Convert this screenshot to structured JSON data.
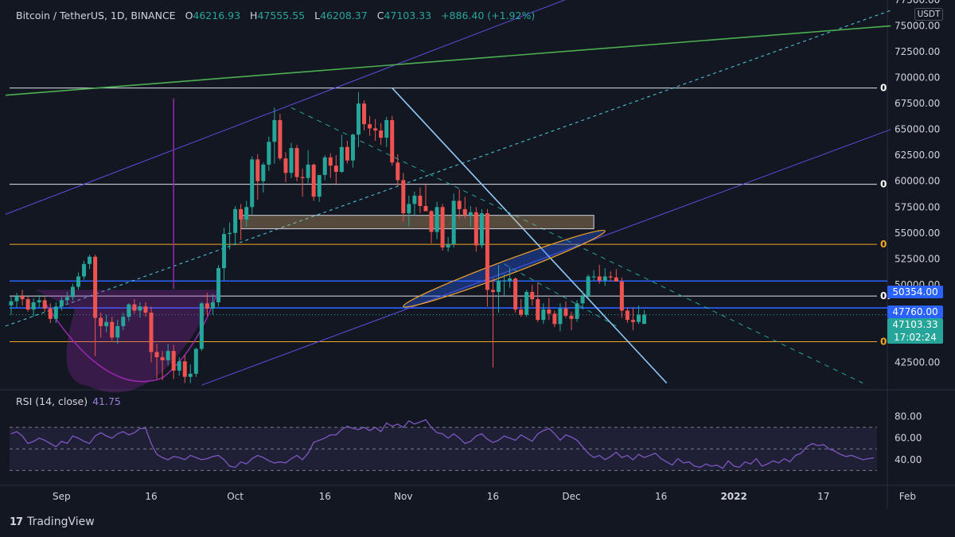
{
  "header": {
    "symbol": "Bitcoin / TetherUS, 1D, BINANCE",
    "o_label": "O",
    "o_value": "46216.93",
    "h_label": "H",
    "h_value": "47555.55",
    "l_label": "L",
    "l_value": "46208.37",
    "c_label": "C",
    "c_value": "47103.33",
    "change": "+886.40 (+1.92%)"
  },
  "currency_badge": "USDT",
  "price_tags": {
    "level1": "50354.00",
    "level2": "47760.00",
    "last_price": "47103.33",
    "countdown": "17:02:24"
  },
  "fib_labels": [
    "0",
    "0",
    "0",
    "0.",
    "0"
  ],
  "rsi": {
    "label": "RSI (14, close)",
    "value": "41.75"
  },
  "branding": "TradingView",
  "colors": {
    "up": "#26a69a",
    "down": "#ef5350",
    "rsi_line": "#7e57c2",
    "blue_level": "#2962ff",
    "green_trend": "#4caf50",
    "channel": "#5b4ee0",
    "orange_level": "#f5a623",
    "cup": "#9c27b0"
  },
  "chart_data": {
    "type": "candlestick",
    "symbol": "Bitcoin / TetherUS",
    "interval": "1D",
    "y_ticks": [
      "42500.00",
      "45000.00",
      "47500.00",
      "50000.00",
      "52500.00",
      "55000.00",
      "57500.00",
      "60000.00",
      "62500.00",
      "65000.00",
      "67500.00",
      "70000.00",
      "72500.00",
      "75000.00",
      "77500.00"
    ],
    "rsi_ticks": [
      "40.00",
      "60.00",
      "80.00"
    ],
    "x_ticks": [
      "Sep",
      "16",
      "Oct",
      "16",
      "Nov",
      "16",
      "Dec",
      "16",
      "2022",
      "17",
      "Feb"
    ],
    "ylim": [
      40000,
      77500
    ],
    "horizontal_levels": {
      "white": [
        69000,
        59700,
        48900
      ],
      "orange": [
        53900,
        44500
      ],
      "blue": [
        50354,
        47760
      ]
    },
    "rsi_bands": [
      70,
      50,
      30
    ],
    "rsi_values": [
      64,
      66,
      62,
      55,
      57,
      60,
      58,
      55,
      52,
      57,
      55,
      62,
      60,
      57,
      55,
      62,
      65,
      62,
      60,
      64,
      66,
      63,
      65,
      69,
      69,
      55,
      45,
      42,
      40,
      43,
      42,
      40,
      44,
      42,
      40,
      41,
      43,
      44,
      40,
      34,
      33,
      38,
      36,
      41,
      44,
      42,
      39,
      37,
      38,
      37,
      41,
      44,
      40,
      46,
      56,
      58,
      60,
      63,
      63,
      68,
      71,
      69,
      68,
      70,
      67,
      70,
      66,
      74,
      71,
      73,
      70,
      76,
      73,
      75,
      77,
      70,
      65,
      64,
      60,
      64,
      60,
      55,
      57,
      62,
      64,
      59,
      56,
      58,
      62,
      60,
      58,
      63,
      60,
      57,
      64,
      67,
      69,
      64,
      58,
      63,
      61,
      58,
      52,
      46,
      42,
      44,
      40,
      43,
      47,
      42,
      44,
      40,
      45,
      42,
      44,
      46,
      41,
      38,
      35,
      41,
      37,
      38,
      34,
      33,
      36,
      34,
      35,
      32,
      39,
      34,
      33,
      38,
      36,
      41,
      34,
      36,
      39,
      37,
      41,
      38,
      44,
      46,
      52,
      55,
      53,
      54,
      50,
      48,
      45,
      43,
      44,
      42,
      40,
      41,
      41.75
    ],
    "candles": [
      [
        48000,
        48900,
        47100,
        48400
      ],
      [
        48400,
        49200,
        47800,
        48900
      ],
      [
        48900,
        49500,
        48000,
        48600
      ],
      [
        48600,
        48900,
        47400,
        47600
      ],
      [
        47600,
        48700,
        46900,
        48300
      ],
      [
        48300,
        49000,
        47800,
        48500
      ],
      [
        48500,
        48800,
        47400,
        47700
      ],
      [
        47700,
        48200,
        46300,
        46700
      ],
      [
        46700,
        48300,
        46300,
        47900
      ],
      [
        47900,
        48800,
        47500,
        48500
      ],
      [
        48500,
        49300,
        48100,
        48800
      ],
      [
        48800,
        50100,
        48500,
        49800
      ],
      [
        49800,
        51200,
        49500,
        50800
      ],
      [
        50800,
        52300,
        50500,
        52000
      ],
      [
        52000,
        52900,
        51500,
        52700
      ],
      [
        52700,
        52900,
        43100,
        46800
      ],
      [
        46800,
        47300,
        44900,
        46000
      ],
      [
        46000,
        47100,
        45400,
        46400
      ],
      [
        46400,
        46900,
        44600,
        44900
      ],
      [
        44900,
        46600,
        44300,
        46000
      ],
      [
        46000,
        47300,
        45600,
        46900
      ],
      [
        46900,
        48200,
        46500,
        48100
      ],
      [
        48100,
        48600,
        47200,
        47500
      ],
      [
        47500,
        48300,
        46800,
        47900
      ],
      [
        47900,
        48300,
        46900,
        47300
      ],
      [
        47300,
        47900,
        42500,
        43500
      ],
      [
        43500,
        44300,
        40900,
        43000
      ],
      [
        43000,
        43600,
        40800,
        42700
      ],
      [
        42700,
        44300,
        42200,
        43600
      ],
      [
        43600,
        44200,
        40900,
        41700
      ],
      [
        41700,
        43000,
        41200,
        42600
      ],
      [
        42600,
        43200,
        40500,
        41100
      ],
      [
        41100,
        42300,
        40500,
        41400
      ],
      [
        41400,
        43900,
        41100,
        43800
      ],
      [
        43800,
        48300,
        43600,
        48200
      ],
      [
        48200,
        49200,
        47000,
        47700
      ],
      [
        47700,
        49100,
        47100,
        48300
      ],
      [
        48300,
        51900,
        47900,
        51600
      ],
      [
        51600,
        55500,
        50400,
        54900
      ],
      [
        54900,
        56000,
        53400,
        55000
      ],
      [
        55000,
        57600,
        53900,
        57300
      ],
      [
        57300,
        57800,
        54300,
        56300
      ],
      [
        56300,
        58100,
        55600,
        57500
      ],
      [
        57500,
        62400,
        56800,
        62100
      ],
      [
        62100,
        62600,
        58200,
        60000
      ],
      [
        60000,
        61800,
        58900,
        61600
      ],
      [
        61600,
        64300,
        61000,
        63800
      ],
      [
        63800,
        67100,
        61700,
        65900
      ],
      [
        65900,
        66500,
        62000,
        62200
      ],
      [
        62200,
        62800,
        59900,
        60800
      ],
      [
        60800,
        63700,
        60300,
        63200
      ],
      [
        63200,
        63500,
        60000,
        60400
      ],
      [
        60400,
        61200,
        58500,
        60300
      ],
      [
        60300,
        63000,
        59800,
        61600
      ],
      [
        61600,
        61700,
        58100,
        58500
      ],
      [
        58500,
        60500,
        58000,
        60600
      ],
      [
        60600,
        62500,
        60100,
        62300
      ],
      [
        62300,
        62700,
        60300,
        61500
      ],
      [
        61500,
        62500,
        59600,
        60900
      ],
      [
        60900,
        64500,
        60800,
        63300
      ],
      [
        63300,
        63900,
        61700,
        62000
      ],
      [
        62000,
        64600,
        61300,
        64500
      ],
      [
        64500,
        68600,
        63300,
        67500
      ],
      [
        67500,
        67800,
        64900,
        65500
      ],
      [
        65500,
        66300,
        64400,
        65100
      ],
      [
        65100,
        66000,
        63900,
        64900
      ],
      [
        64900,
        65600,
        63500,
        64200
      ],
      [
        64200,
        66200,
        63300,
        65900
      ],
      [
        65900,
        66300,
        61500,
        61800
      ],
      [
        61800,
        62600,
        59500,
        60100
      ],
      [
        60100,
        60800,
        56100,
        56900
      ],
      [
        56900,
        58600,
        55600,
        57800
      ],
      [
        57800,
        59000,
        56700,
        58600
      ],
      [
        58600,
        59400,
        56900,
        57600
      ],
      [
        57600,
        59700,
        57100,
        57100
      ],
      [
        57100,
        57200,
        54000,
        55100
      ],
      [
        55100,
        58000,
        54400,
        57500
      ],
      [
        57500,
        57800,
        53300,
        53600
      ],
      [
        53600,
        54600,
        53200,
        53900
      ],
      [
        53900,
        58800,
        53600,
        58100
      ],
      [
        58100,
        59200,
        56400,
        57300
      ],
      [
        57300,
        58500,
        56400,
        56700
      ],
      [
        56700,
        57600,
        55600,
        57000
      ],
      [
        57000,
        57500,
        53200,
        53800
      ],
      [
        53800,
        57300,
        53500,
        56900
      ],
      [
        56900,
        57300,
        47900,
        49500
      ],
      [
        49500,
        50600,
        42000,
        49300
      ],
      [
        49300,
        51900,
        47300,
        50400
      ],
      [
        50400,
        51000,
        48900,
        50400
      ],
      [
        50400,
        51700,
        49700,
        50600
      ],
      [
        50600,
        50700,
        47300,
        47600
      ],
      [
        47600,
        48600,
        46900,
        47100
      ],
      [
        47100,
        49500,
        46900,
        49300
      ],
      [
        49300,
        50000,
        48000,
        48600
      ],
      [
        48600,
        50200,
        46400,
        46600
      ],
      [
        46600,
        48200,
        46200,
        47600
      ],
      [
        47600,
        48700,
        46600,
        47200
      ],
      [
        47200,
        47500,
        45900,
        46200
      ],
      [
        46200,
        48200,
        45500,
        47700
      ],
      [
        47700,
        48400,
        46800,
        47000
      ],
      [
        47000,
        47400,
        45600,
        46700
      ],
      [
        46700,
        48500,
        46400,
        48200
      ],
      [
        48200,
        49400,
        47600,
        48900
      ],
      [
        48900,
        51000,
        48700,
        50800
      ],
      [
        50800,
        51400,
        50400,
        50800
      ],
      [
        50800,
        51900,
        50100,
        50400
      ],
      [
        50400,
        51600,
        49900,
        50800
      ],
      [
        50800,
        51300,
        50300,
        50700
      ],
      [
        50700,
        51500,
        50500,
        50300
      ],
      [
        50300,
        50700,
        46800,
        47500
      ],
      [
        47500,
        47800,
        46300,
        46600
      ],
      [
        46600,
        47800,
        45600,
        46400
      ],
      [
        46400,
        48000,
        46200,
        47100
      ],
      [
        46216.93,
        47555.55,
        46208.37,
        47103.33
      ]
    ]
  }
}
